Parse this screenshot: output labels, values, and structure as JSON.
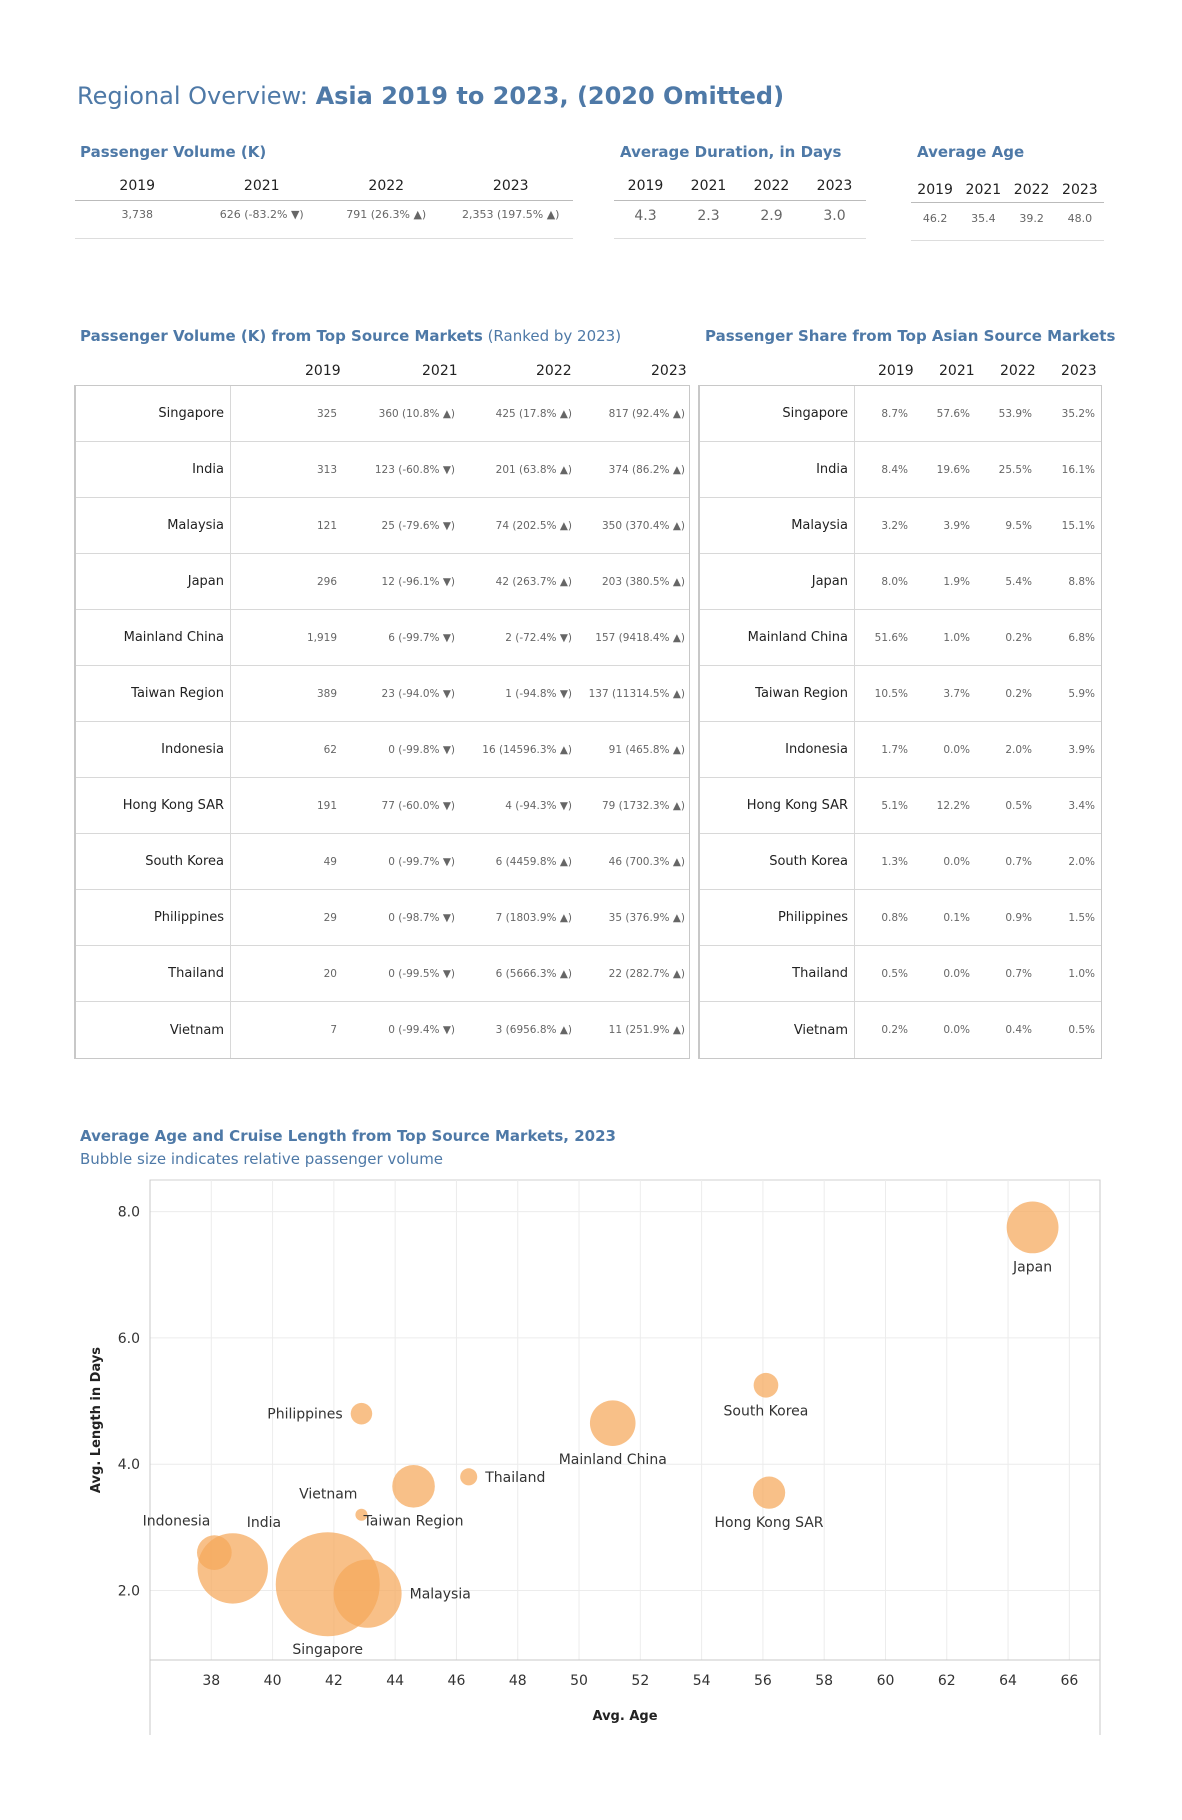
{
  "page_title": {
    "prefix": "Regional Overview: ",
    "bold": "Asia 2019 to 2023, (2020 Omitted)"
  },
  "passenger_volume": {
    "title": "Passenger Volume (K)",
    "years": [
      "2019",
      "2021",
      "2022",
      "2023"
    ],
    "values": [
      "3,738",
      "626 (-83.2% ▼)",
      "791 (26.3% ▲)",
      "2,353 (197.5% ▲)"
    ]
  },
  "avg_duration": {
    "title": "Average Duration, in Days",
    "years": [
      "2019",
      "2021",
      "2022",
      "2023"
    ],
    "values": [
      "4.3",
      "2.3",
      "2.9",
      "3.0"
    ]
  },
  "avg_age": {
    "title": "Average Age",
    "years": [
      "2019",
      "2021",
      "2022",
      "2023"
    ],
    "values": [
      "46.2",
      "35.4",
      "39.2",
      "48.0"
    ]
  },
  "markets_volume": {
    "title": "Passenger Volume (K) from Top Source Markets",
    "title_note": " (Ranked by 2023)",
    "years": [
      "2019",
      "2021",
      "2022",
      "2023"
    ],
    "rows": [
      {
        "market": "Singapore",
        "values": [
          "325",
          "360 (10.8% ▲)",
          "425 (17.8% ▲)",
          "817 (92.4% ▲)"
        ]
      },
      {
        "market": "India",
        "values": [
          "313",
          "123 (-60.8% ▼)",
          "201 (63.8% ▲)",
          "374 (86.2% ▲)"
        ]
      },
      {
        "market": "Malaysia",
        "values": [
          "121",
          "25 (-79.6% ▼)",
          "74 (202.5% ▲)",
          "350 (370.4% ▲)"
        ]
      },
      {
        "market": "Japan",
        "values": [
          "296",
          "12 (-96.1% ▼)",
          "42 (263.7% ▲)",
          "203 (380.5% ▲)"
        ]
      },
      {
        "market": "Mainland China",
        "values": [
          "1,919",
          "6 (-99.7% ▼)",
          "2 (-72.4% ▼)",
          "157 (9418.4% ▲)"
        ]
      },
      {
        "market": "Taiwan Region",
        "values": [
          "389",
          "23 (-94.0% ▼)",
          "1 (-94.8% ▼)",
          "137 (11314.5% ▲)"
        ]
      },
      {
        "market": "Indonesia",
        "values": [
          "62",
          "0 (-99.8% ▼)",
          "16 (14596.3% ▲)",
          "91 (465.8% ▲)"
        ]
      },
      {
        "market": "Hong Kong SAR",
        "values": [
          "191",
          "77 (-60.0% ▼)",
          "4 (-94.3% ▼)",
          "79 (1732.3% ▲)"
        ]
      },
      {
        "market": "South Korea",
        "values": [
          "49",
          "0 (-99.7% ▼)",
          "6 (4459.8% ▲)",
          "46 (700.3% ▲)"
        ]
      },
      {
        "market": "Philippines",
        "values": [
          "29",
          "0 (-98.7% ▼)",
          "7 (1803.9% ▲)",
          "35 (376.9% ▲)"
        ]
      },
      {
        "market": "Thailand",
        "values": [
          "20",
          "0 (-99.5% ▼)",
          "6 (5666.3% ▲)",
          "22 (282.7% ▲)"
        ]
      },
      {
        "market": "Vietnam",
        "values": [
          "7",
          "0 (-99.4% ▼)",
          "3 (6956.8% ▲)",
          "11 (251.9% ▲)"
        ]
      }
    ]
  },
  "markets_share": {
    "title": "Passenger Share from Top Asian Source Markets",
    "years": [
      "2019",
      "2021",
      "2022",
      "2023"
    ],
    "rows": [
      {
        "market": "Singapore",
        "values": [
          "8.7%",
          "57.6%",
          "53.9%",
          "35.2%"
        ]
      },
      {
        "market": "India",
        "values": [
          "8.4%",
          "19.6%",
          "25.5%",
          "16.1%"
        ]
      },
      {
        "market": "Malaysia",
        "values": [
          "3.2%",
          "3.9%",
          "9.5%",
          "15.1%"
        ]
      },
      {
        "market": "Japan",
        "values": [
          "8.0%",
          "1.9%",
          "5.4%",
          "8.8%"
        ]
      },
      {
        "market": "Mainland China",
        "values": [
          "51.6%",
          "1.0%",
          "0.2%",
          "6.8%"
        ]
      },
      {
        "market": "Taiwan Region",
        "values": [
          "10.5%",
          "3.7%",
          "0.2%",
          "5.9%"
        ]
      },
      {
        "market": "Indonesia",
        "values": [
          "1.7%",
          "0.0%",
          "2.0%",
          "3.9%"
        ]
      },
      {
        "market": "Hong Kong SAR",
        "values": [
          "5.1%",
          "12.2%",
          "0.5%",
          "3.4%"
        ]
      },
      {
        "market": "South Korea",
        "values": [
          "1.3%",
          "0.0%",
          "0.7%",
          "2.0%"
        ]
      },
      {
        "market": "Philippines",
        "values": [
          "0.8%",
          "0.1%",
          "0.9%",
          "1.5%"
        ]
      },
      {
        "market": "Thailand",
        "values": [
          "0.5%",
          "0.0%",
          "0.7%",
          "1.0%"
        ]
      },
      {
        "market": "Vietnam",
        "values": [
          "0.2%",
          "0.0%",
          "0.4%",
          "0.5%"
        ]
      }
    ]
  },
  "bubble": {
    "title": "Average Age and Cruise Length from Top Source Markets, 2023",
    "subtitle": "Bubble size indicates relative passenger volume"
  },
  "chart_data": {
    "type": "scatter",
    "title": "Average Age and Cruise Length from Top Source Markets, 2023",
    "subtitle": "Bubble size indicates relative passenger volume",
    "xlabel": "Avg. Age",
    "ylabel": "Avg. Length in Days",
    "xlim": [
      36,
      67
    ],
    "ylim": [
      0.9,
      8.5
    ],
    "xticks": [
      38,
      40,
      42,
      44,
      46,
      48,
      50,
      52,
      54,
      56,
      58,
      60,
      62,
      64,
      66
    ],
    "yticks": [
      2.0,
      4.0,
      6.0,
      8.0
    ],
    "ytick_labels": [
      "2.0",
      "4.0",
      "6.0",
      "8.0"
    ],
    "grid": true,
    "color": "#f5a85a",
    "points": [
      {
        "label": "Japan",
        "x": 64.8,
        "y": 7.75,
        "size": 203,
        "label_pos": "below"
      },
      {
        "label": "South Korea",
        "x": 56.1,
        "y": 5.25,
        "size": 46,
        "label_pos": "below"
      },
      {
        "label": "Philippines",
        "x": 42.9,
        "y": 4.8,
        "size": 35,
        "label_pos": "left"
      },
      {
        "label": "Mainland China",
        "x": 51.1,
        "y": 4.65,
        "size": 157,
        "label_pos": "below"
      },
      {
        "label": "Thailand",
        "x": 46.4,
        "y": 3.8,
        "size": 22,
        "label_pos": "right"
      },
      {
        "label": "Hong Kong SAR",
        "x": 56.2,
        "y": 3.55,
        "size": 79,
        "label_pos": "below"
      },
      {
        "label": "Taiwan Region",
        "x": 44.6,
        "y": 3.65,
        "size": 137,
        "label_pos": "below"
      },
      {
        "label": "Vietnam",
        "x": 42.9,
        "y": 3.2,
        "size": 11,
        "label_pos": "above-left"
      },
      {
        "label": "Indonesia",
        "x": 38.1,
        "y": 2.6,
        "size": 91,
        "label_pos": "above-left"
      },
      {
        "label": "India",
        "x": 38.7,
        "y": 2.35,
        "size": 374,
        "label_pos": "above-right"
      },
      {
        "label": "Singapore",
        "x": 41.8,
        "y": 2.1,
        "size": 817,
        "label_pos": "below"
      },
      {
        "label": "Malaysia",
        "x": 43.1,
        "y": 1.95,
        "size": 350,
        "label_pos": "right"
      }
    ]
  }
}
